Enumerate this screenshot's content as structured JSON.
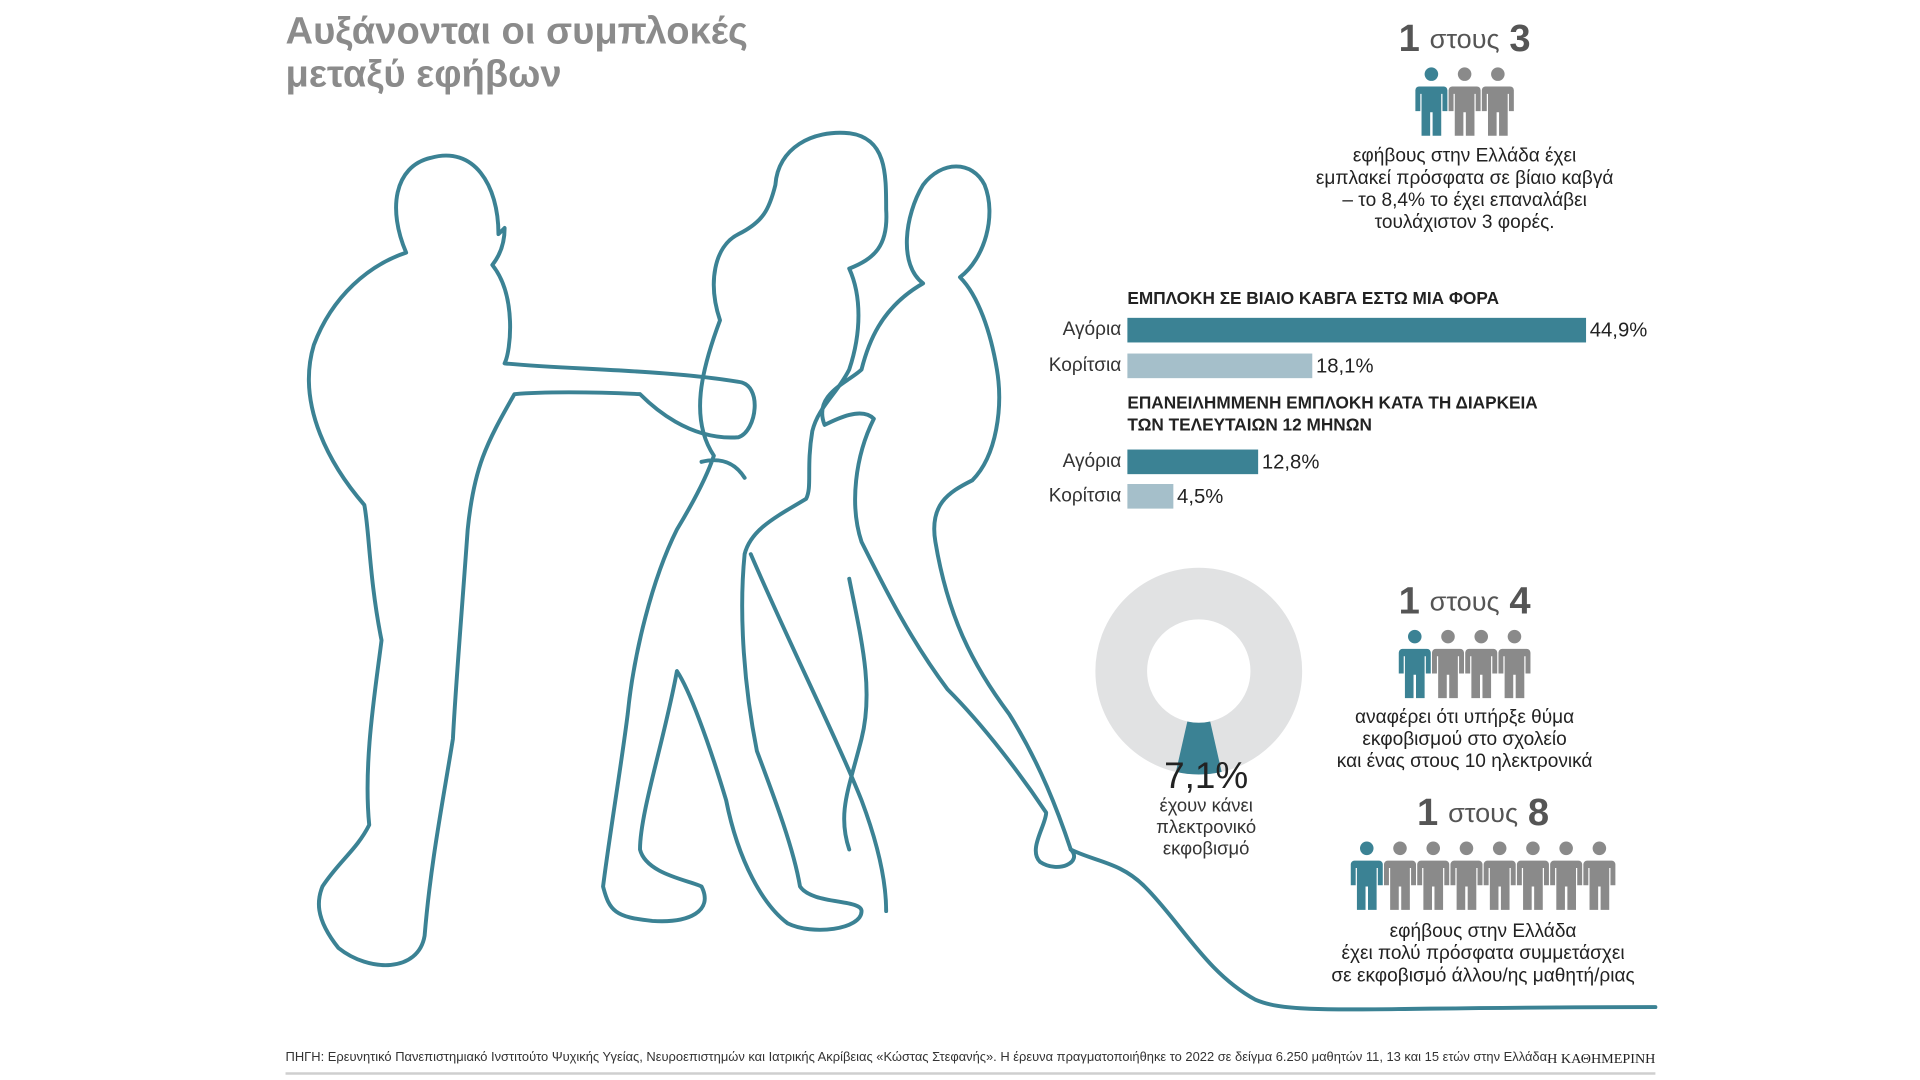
{
  "title": [
    "Αυξάνονται οι συμπλοκές",
    "μεταξύ εφήβων"
  ],
  "stats": [
    {
      "count": 1,
      "connector": "στους",
      "total": 3,
      "text": [
        "εφήβους στην Ελλάδα έχει",
        "εμπλακεί πρόσφατα σε βίαιο καβγά",
        "– το 8,4% το έχει επαναλάβει",
        "τουλάχιστον 3 φορές."
      ]
    },
    {
      "count": 1,
      "connector": "στους",
      "total": 4,
      "text": [
        "αναφέρει ότι υπήρξε θύμα",
        "εκφοβισμού στο σχολείο",
        "και ένας στους 10 ηλεκτρονικά"
      ]
    },
    {
      "count": 1,
      "connector": "στους",
      "total": 8,
      "text": [
        "εφήβους στην Ελλάδα",
        "έχει πολύ πρόσφατα συμμετάσχει",
        "σε εκφοβισμό άλλου/ης μαθητή/ριας"
      ]
    }
  ],
  "chart_data": [
    {
      "type": "bar",
      "orientation": "horizontal",
      "title": [
        "ΕΜΠΛΟΚΗ ΣΕ ΒΙΑΙΟ ΚΑΒΓΑ ΕΣΤΩ ΜΙΑ ΦΟΡΑ"
      ],
      "categories": [
        "Αγόρια",
        "Κορίτσια"
      ],
      "values": [
        44.9,
        18.1
      ],
      "value_labels": [
        "44,9%",
        "18,1%"
      ],
      "colors": [
        "#3b8294",
        "#a5bfca"
      ]
    },
    {
      "type": "bar",
      "orientation": "horizontal",
      "title": [
        "ΕΠΑΝΕΙΛΗΜΜΕΝΗ ΕΜΠΛΟΚΗ ΚΑΤΑ ΤΗ ΔΙΑΡΚΕΙΑ",
        "ΤΩΝ ΤΕΛΕΥΤΑΙΩΝ 12 ΜΗΝΩΝ"
      ],
      "categories": [
        "Αγόρια",
        "Κορίτσια"
      ],
      "values": [
        12.8,
        4.5
      ],
      "value_labels": [
        "12,8%",
        "4,5%"
      ],
      "colors": [
        "#3b8294",
        "#a5bfca"
      ]
    },
    {
      "type": "pie",
      "values": [
        7.1
      ],
      "value_labels": [
        "7,1%"
      ],
      "color": "#3b8294",
      "rest_color": "#e1e2e3",
      "caption": [
        "έχουν κάνει",
        "πλεκτρονικό",
        "εκφοβισμό"
      ]
    }
  ],
  "footer": {
    "source": "ΠΗΓΗ: Ερευνητικό Πανεπιστημιακό Ινστιτούτο Ψυχικής Υγείας, Νευροεπιστημών και Ιατρικής Ακρίβειας «Κώστας Στεφανής». Η έρευνα πραγματοποιήθηκε το 2022 σε δείγμα 6.250 μαθητών 11, 13 και 15 ετών στην Ελλάδα.",
    "brand": "Η ΚΑΘΗΜΕΡΙΝΗ"
  }
}
